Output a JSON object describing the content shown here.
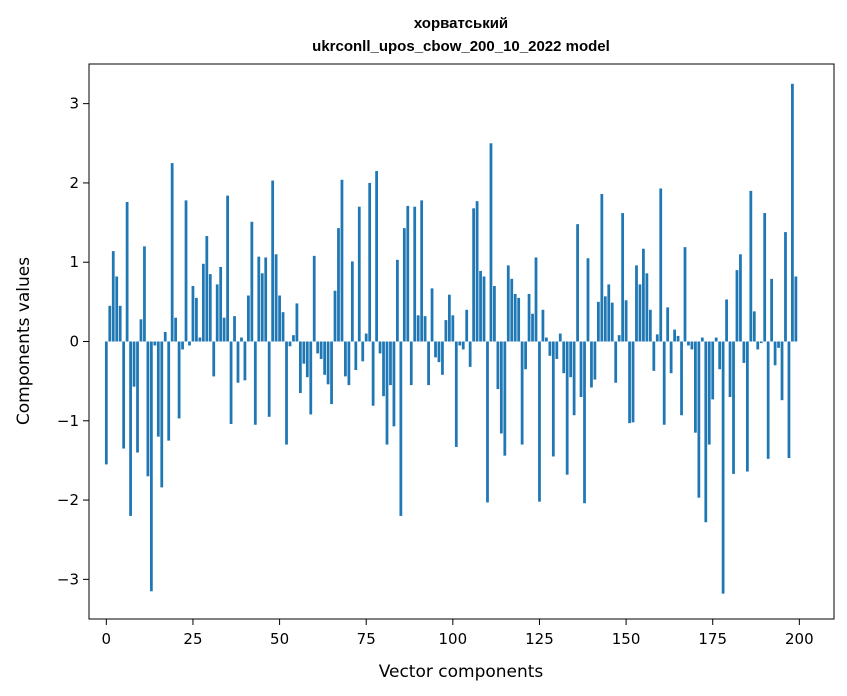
{
  "chart_data": {
    "type": "bar",
    "title_line1": "хорватський",
    "title_line2": "ukrconll_upos_cbow_200_10_2022 model",
    "xlabel": "Vector components",
    "ylabel": "Components values",
    "xlim": [
      -5,
      210
    ],
    "ylim": [
      -3.5,
      3.5
    ],
    "xticks": [
      0,
      25,
      50,
      75,
      100,
      125,
      150,
      175,
      200
    ],
    "yticks": [
      -3,
      -2,
      -1,
      0,
      1,
      2,
      3
    ],
    "xtick_labels": [
      "0",
      "25",
      "50",
      "75",
      "100",
      "125",
      "150",
      "175",
      "200"
    ],
    "ytick_labels": [
      "−3",
      "−2",
      "−1",
      "0",
      "1",
      "2",
      "3"
    ],
    "bar_color": "#1f77b4",
    "values": [
      -1.55,
      0.45,
      1.14,
      0.82,
      0.45,
      -1.35,
      1.76,
      -2.2,
      -0.57,
      -1.4,
      0.28,
      1.2,
      -1.7,
      -3.15,
      -0.05,
      -1.2,
      -1.84,
      0.12,
      -1.25,
      2.25,
      0.3,
      -0.97,
      -0.1,
      1.78,
      -0.05,
      0.7,
      0.55,
      0.05,
      0.98,
      1.33,
      0.85,
      -0.44,
      0.72,
      0.94,
      0.3,
      1.84,
      -1.04,
      0.32,
      -0.52,
      0.05,
      -0.49,
      0.58,
      1.51,
      -1.05,
      1.07,
      0.86,
      1.06,
      -0.95,
      2.03,
      1.1,
      0.58,
      0.37,
      -1.3,
      -0.06,
      0.08,
      0.48,
      -0.65,
      -0.28,
      -0.45,
      -0.92,
      1.08,
      -0.15,
      -0.22,
      -0.42,
      -0.54,
      -0.79,
      0.64,
      1.43,
      2.04,
      -0.44,
      -0.55,
      1.01,
      -0.36,
      1.7,
      -0.25,
      0.1,
      2.0,
      -0.81,
      2.15,
      -0.15,
      -0.69,
      -1.3,
      -0.55,
      -1.07,
      1.03,
      -2.2,
      1.43,
      1.71,
      -0.55,
      1.7,
      0.33,
      1.78,
      0.32,
      -0.55,
      0.67,
      -0.2,
      -0.26,
      -0.42,
      0.27,
      0.59,
      0.33,
      -1.33,
      -0.05,
      -0.1,
      0.4,
      -0.32,
      1.68,
      1.77,
      0.89,
      0.82,
      -2.03,
      2.5,
      0.7,
      -0.6,
      -1.16,
      -1.44,
      0.96,
      0.79,
      0.6,
      0.55,
      -1.3,
      -0.35,
      0.6,
      0.35,
      1.06,
      -2.02,
      0.4,
      0.05,
      -0.18,
      -1.45,
      -0.22,
      0.1,
      -0.4,
      -1.68,
      -0.45,
      -0.93,
      1.48,
      -0.7,
      -2.04,
      1.05,
      -0.58,
      -0.48,
      0.5,
      1.86,
      0.57,
      0.72,
      0.49,
      -0.52,
      0.08,
      1.62,
      0.52,
      -1.03,
      -1.02,
      0.96,
      0.72,
      1.17,
      0.86,
      0.4,
      -0.37,
      0.09,
      1.93,
      -1.05,
      0.43,
      -0.4,
      0.15,
      0.07,
      -0.93,
      1.19,
      -0.05,
      -0.1,
      -1.15,
      -1.97,
      0.05,
      -2.28,
      -1.3,
      -0.73,
      0.05,
      -0.35,
      -3.18,
      0.53,
      -0.7,
      -1.67,
      0.9,
      1.1,
      -0.27,
      -1.64,
      1.9,
      0.38,
      -0.1,
      -0.02,
      1.62,
      -1.48,
      0.79,
      -0.3,
      -0.08,
      -0.74,
      1.38,
      -1.47,
      3.25,
      0.82
    ]
  }
}
